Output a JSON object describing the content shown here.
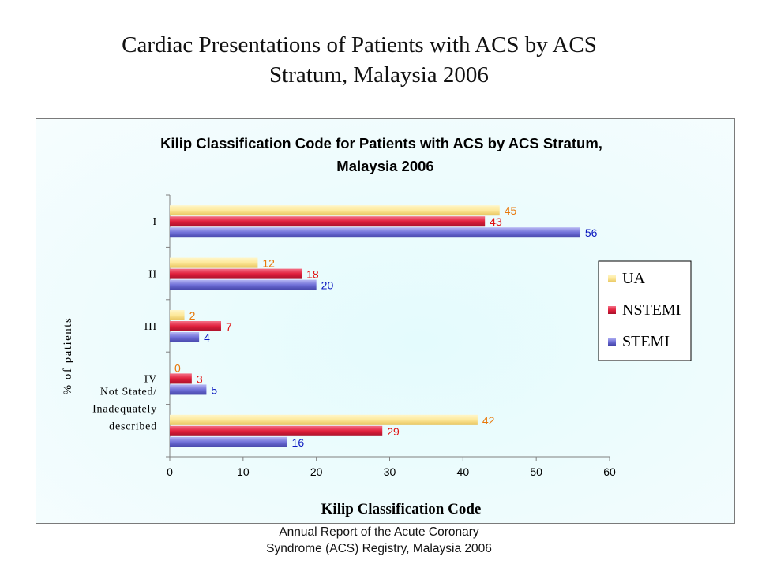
{
  "slide": {
    "title_line1": "Cardiac Presentations of Patients with ACS by ACS",
    "title_line2": "Stratum, Malaysia 2006",
    "footer_line1": "Annual Report of the Acute Coronary",
    "footer_line2": "Syndrome (ACS) Registry, Malaysia 2006"
  },
  "chart_data": {
    "type": "bar",
    "orientation": "horizontal",
    "title_line1": "Kilip Classification Code for Patients with ACS by ACS Stratum,",
    "title_line2": "Malaysia 2006",
    "xlabel": "Kilip Classification Code",
    "ylabel": "% of patients",
    "categories": [
      "I",
      "II",
      "III",
      "IV",
      "Not Stated/ Inadequately described"
    ],
    "category_label_lines": [
      [
        "I"
      ],
      [
        "II"
      ],
      [
        "III"
      ],
      [
        "IV"
      ],
      [
        "Not Stated/",
        "Inadequately",
        "described"
      ]
    ],
    "series": [
      {
        "name": "UA",
        "values": [
          45,
          12,
          2,
          0,
          42
        ],
        "color": "#fde89a",
        "label_color": "#e8780a"
      },
      {
        "name": "NSTEMI",
        "values": [
          43,
          18,
          7,
          3,
          29
        ],
        "color": "#e0203c",
        "label_color": "#e01010"
      },
      {
        "name": "STEMI",
        "values": [
          56,
          20,
          4,
          5,
          16
        ],
        "color": "#7070d8",
        "label_color": "#0a18c0"
      }
    ],
    "xlim": [
      0,
      60
    ],
    "xticks": [
      0,
      10,
      20,
      30,
      40,
      50,
      60
    ],
    "grid": false,
    "legend_position": "right"
  }
}
